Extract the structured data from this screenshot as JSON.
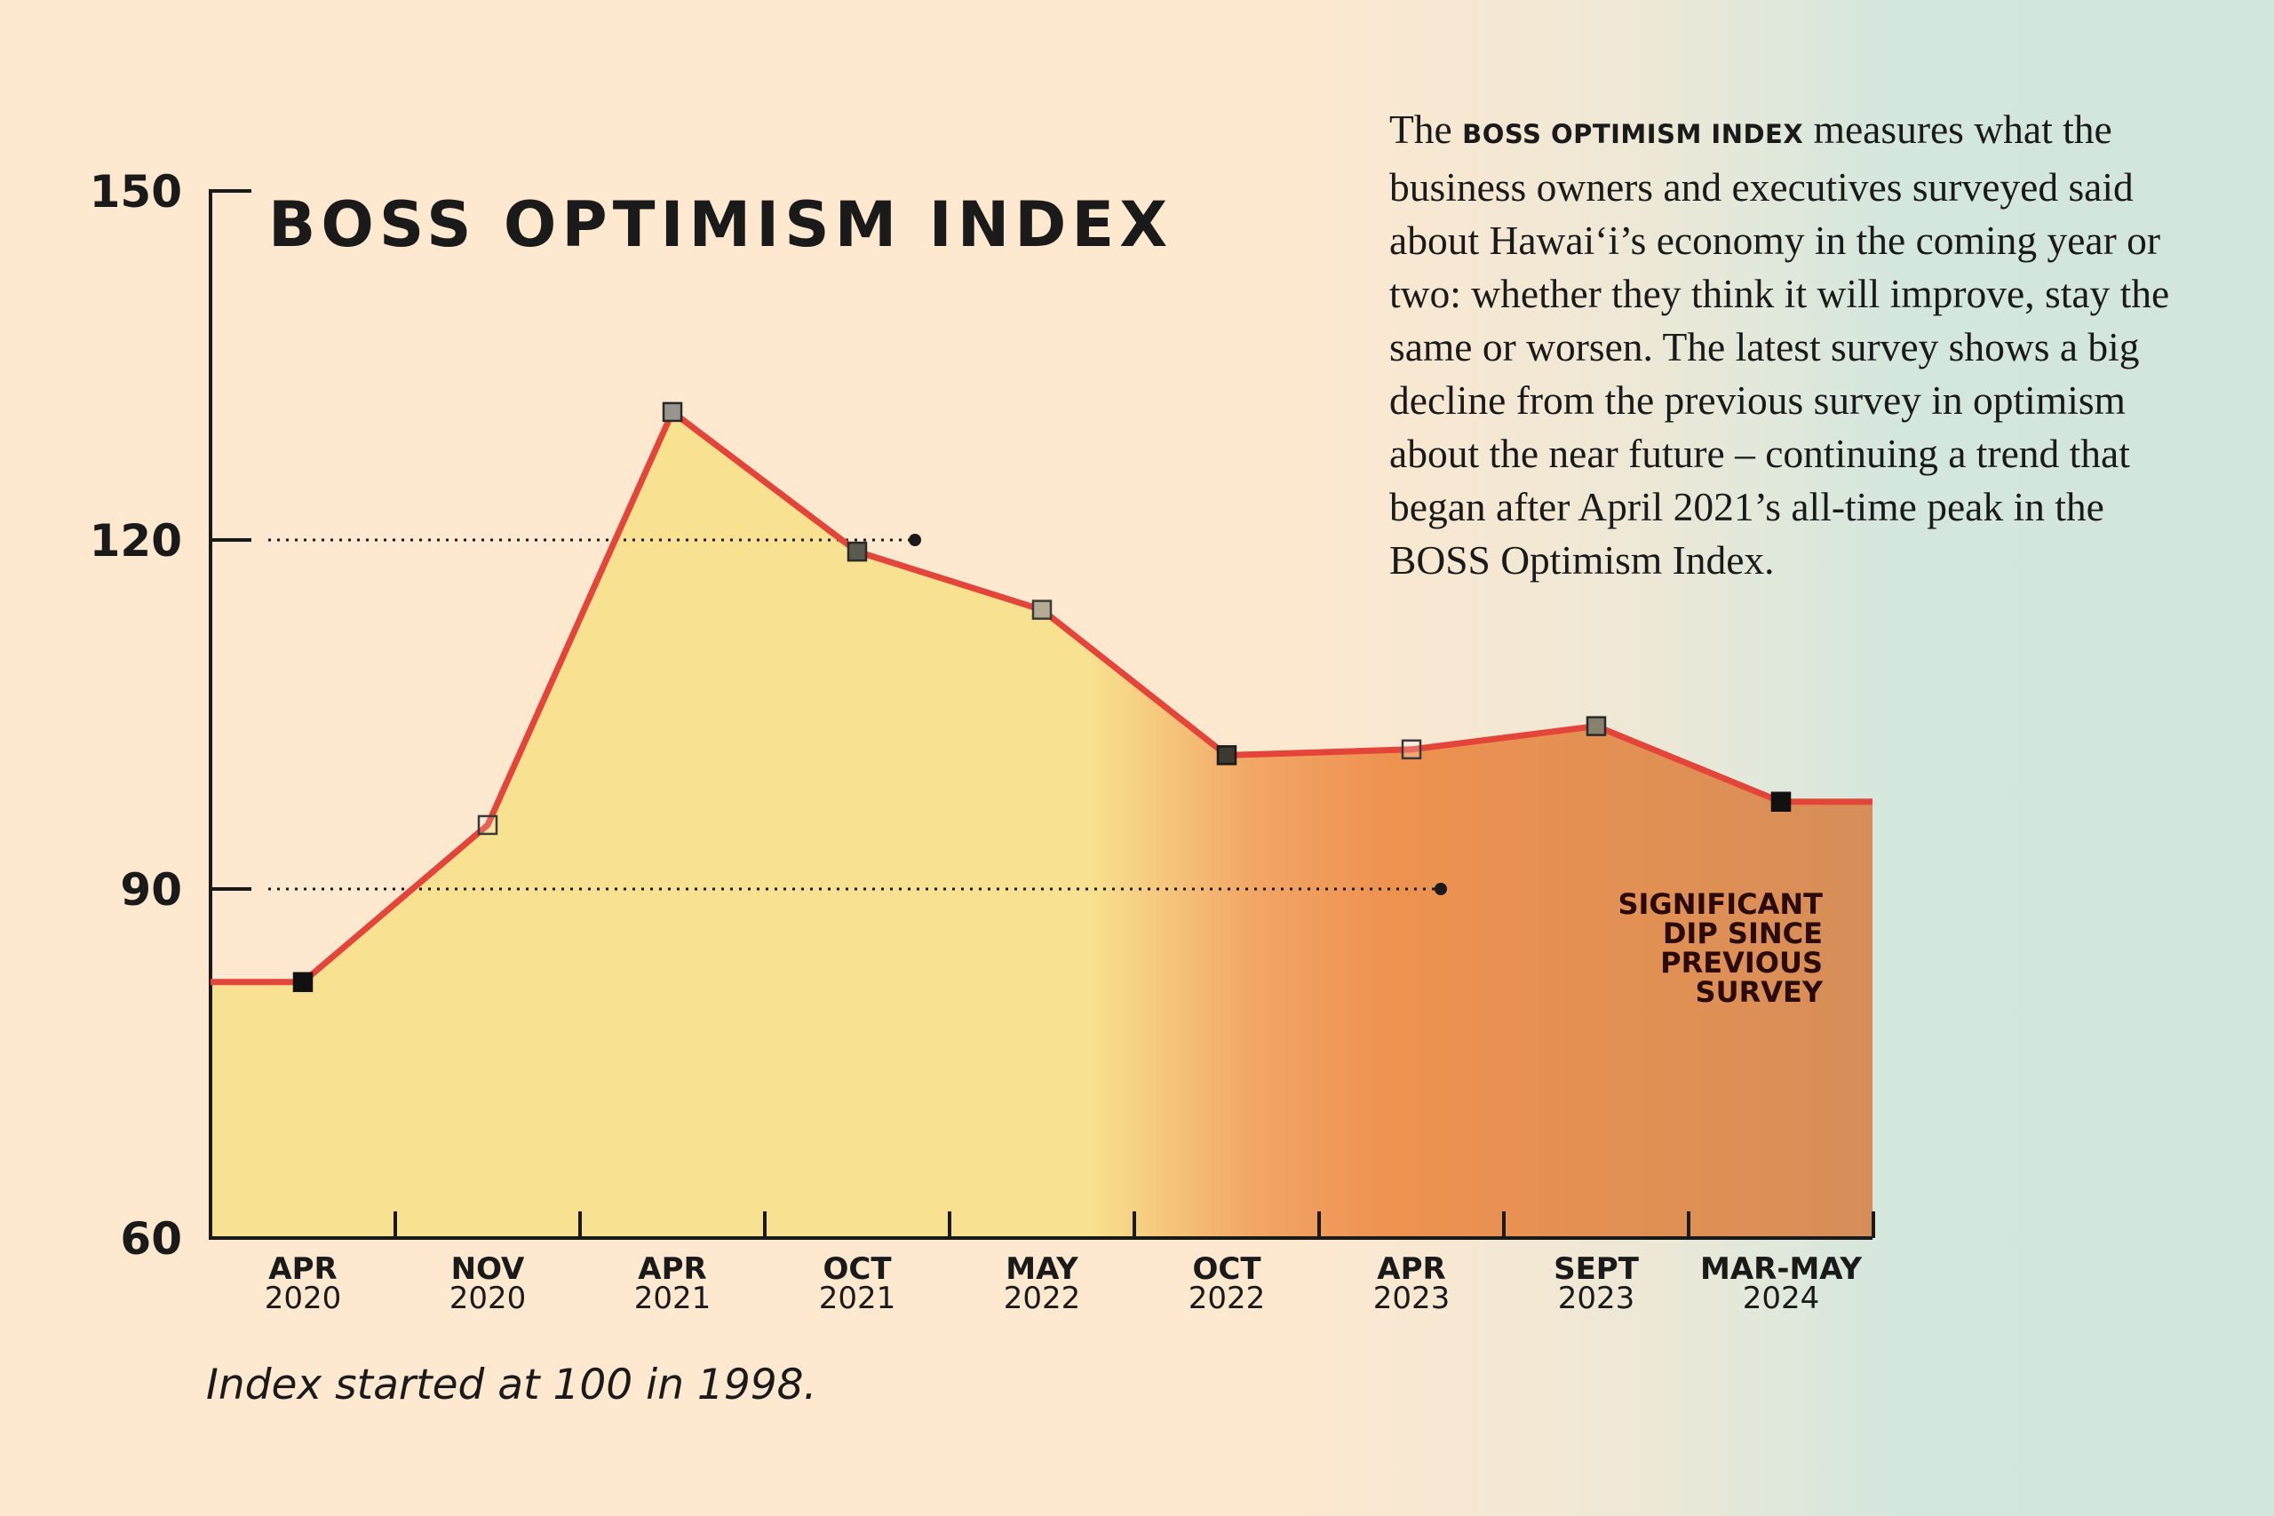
{
  "description": {
    "before": "The ",
    "highlight": "BOSS OPTIMISM INDEX",
    "after": " measures what the business owners and executives surveyed said about Hawai‘i’s economy in the coming year or two: whether they think it will improve, stay the same or worsen. The latest survey shows a big decline from the previous survey in optimism about the near future – continuing a trend that began after April 2021’s all-time peak in the BOSS Optimism Index."
  },
  "footnote": "Index started at 100 in 1998.",
  "chart_data": {
    "type": "area",
    "title": "BOSS OPTIMISM INDEX",
    "ylim": [
      60,
      150
    ],
    "yticks": [
      "60",
      "90",
      "120",
      "150"
    ],
    "categories": [
      [
        "APR",
        "2020"
      ],
      [
        "NOV",
        "2020"
      ],
      [
        "APR",
        "2021"
      ],
      [
        "OCT",
        "2021"
      ],
      [
        "MAY",
        "2022"
      ],
      [
        "OCT",
        "2022"
      ],
      [
        "APR",
        "2023"
      ],
      [
        "SEPT",
        "2023"
      ],
      [
        "MAR-MAY",
        "2024"
      ]
    ],
    "values": [
      82,
      95.5,
      131,
      119,
      114,
      101.5,
      102,
      104,
      97.5
    ],
    "reference_lines": [
      120,
      90
    ],
    "annotation": [
      "SIGNIFICANT",
      "DIP SINCE",
      "PREVIOUS",
      "SURVEY"
    ],
    "colors": {
      "line": "#e4453a",
      "fill_start": "#f8e190",
      "fill_mid": "#ee9250",
      "fill_end": "#d68e58",
      "axis": "#1a1a1a"
    }
  }
}
